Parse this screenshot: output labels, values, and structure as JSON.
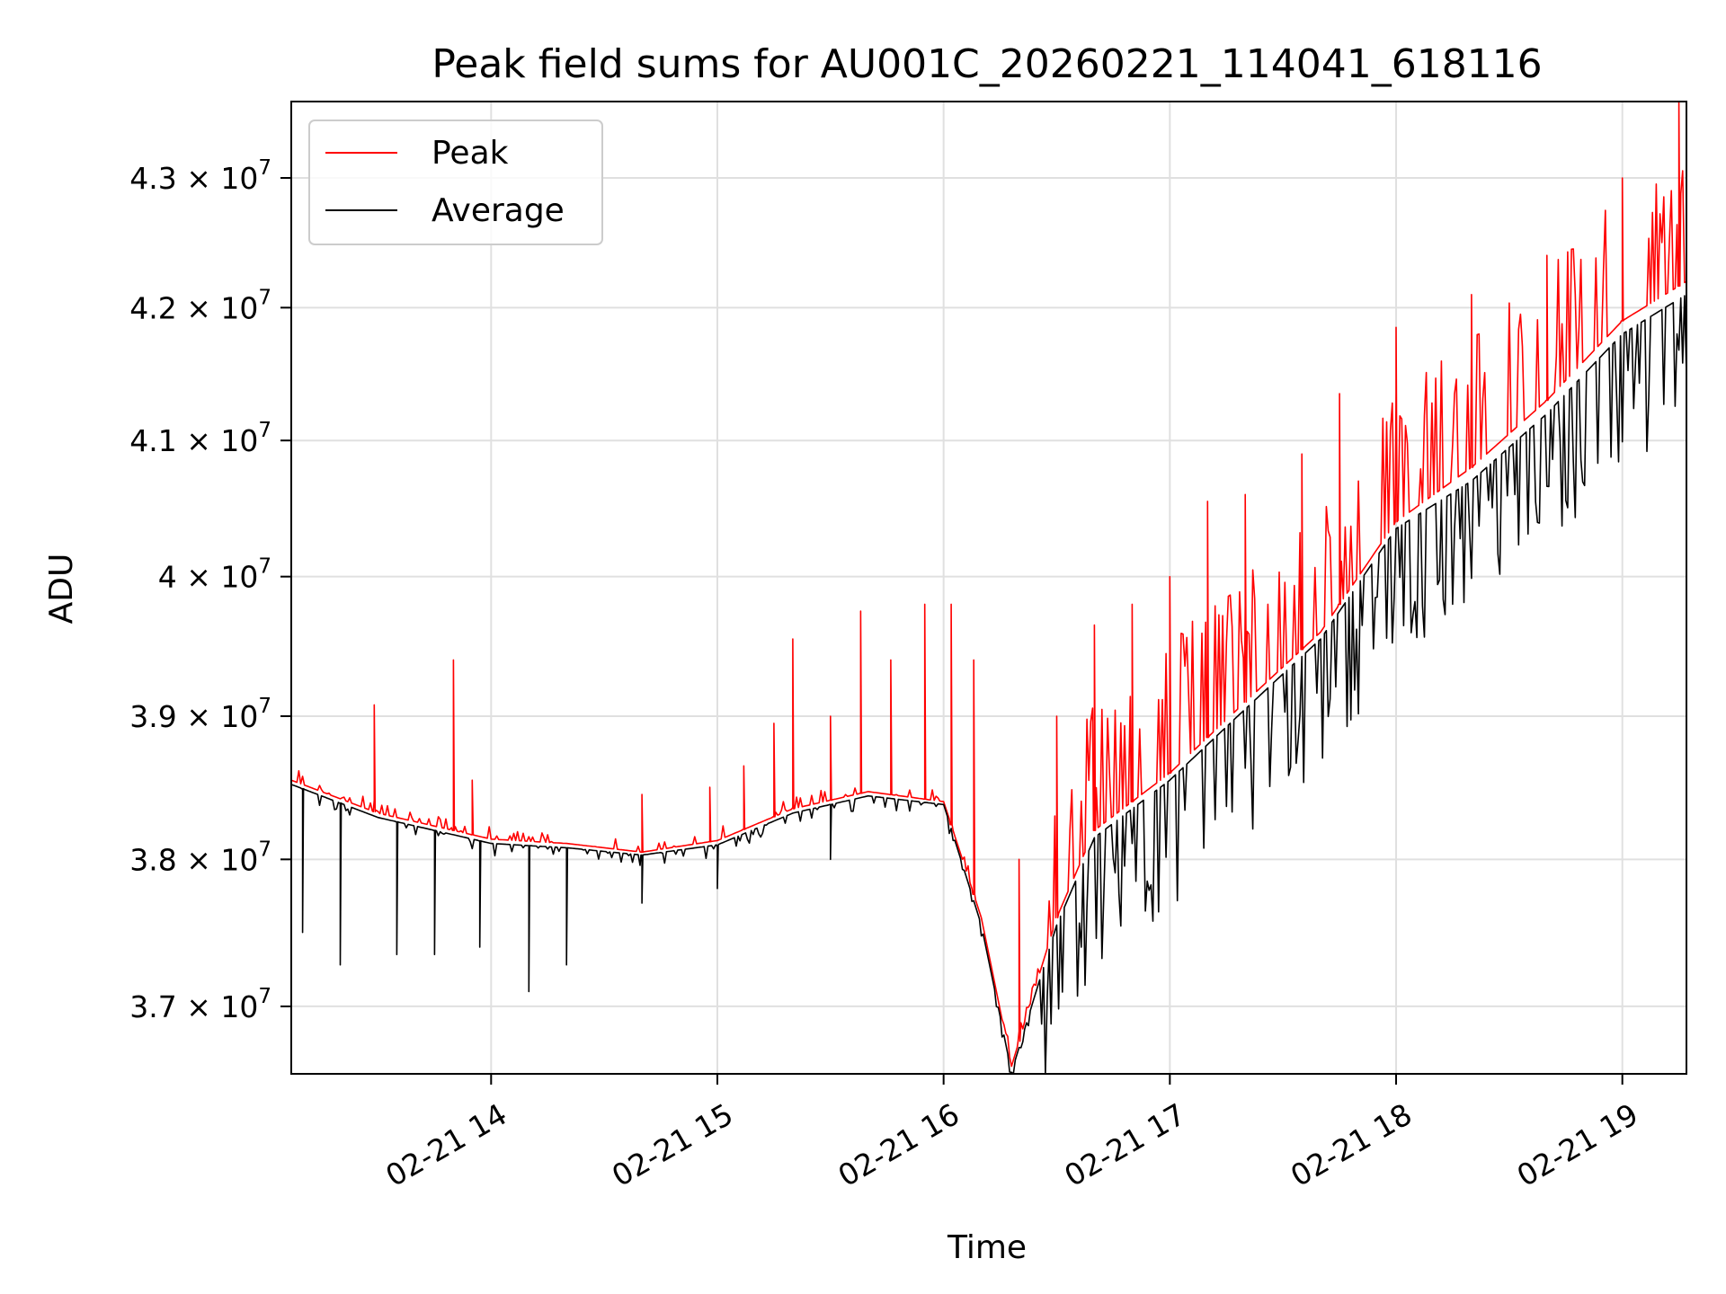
{
  "chart_data": {
    "type": "line",
    "title": "Peak field sums for AU001C_20260221_114041_618116",
    "xlabel": "Time",
    "ylabel": "ADU",
    "scale_y": "log",
    "grid": true,
    "legend_position": "top-left",
    "xlim": [
      "2026-02-21 13:07",
      "2026-02-21 19:17"
    ],
    "ylim": [
      36550000,
      43600000
    ],
    "x_ticks": [
      {
        "value": "2026-02-21 14:00",
        "label": "02-21 14"
      },
      {
        "value": "2026-02-21 15:00",
        "label": "02-21 15"
      },
      {
        "value": "2026-02-21 16:00",
        "label": "02-21 16"
      },
      {
        "value": "2026-02-21 17:00",
        "label": "02-21 17"
      },
      {
        "value": "2026-02-21 18:00",
        "label": "02-21 18"
      },
      {
        "value": "2026-02-21 19:00",
        "label": "02-21 19"
      }
    ],
    "y_ticks": [
      {
        "value": 37000000,
        "mantissa": "3.7",
        "exponent": "7"
      },
      {
        "value": 38000000,
        "mantissa": "3.8",
        "exponent": "7"
      },
      {
        "value": 39000000,
        "mantissa": "3.9",
        "exponent": "7"
      },
      {
        "value": 40000000,
        "mantissa": "4",
        "exponent": "7"
      },
      {
        "value": 41000000,
        "mantissa": "4.1",
        "exponent": "7"
      },
      {
        "value": 42000000,
        "mantissa": "4.2",
        "exponent": "7"
      },
      {
        "value": 43000000,
        "mantissa": "4.3",
        "exponent": "7"
      }
    ],
    "series": [
      {
        "name": "Peak",
        "color": "#ff0000",
        "baseline": [
          [
            "2026-02-21 13:07",
            38550000
          ],
          [
            "2026-02-21 13:30",
            38320000
          ],
          [
            "2026-02-21 14:00",
            38140000
          ],
          [
            "2026-02-21 14:20",
            38110000
          ],
          [
            "2026-02-21 14:40",
            38050000
          ],
          [
            "2026-02-21 15:00",
            38130000
          ],
          [
            "2026-02-21 15:20",
            38350000
          ],
          [
            "2026-02-21 15:40",
            38470000
          ],
          [
            "2026-02-21 16:00",
            38400000
          ],
          [
            "2026-02-21 16:10",
            37600000
          ],
          [
            "2026-02-21 16:18",
            36600000
          ],
          [
            "2026-02-21 16:30",
            37600000
          ],
          [
            "2026-02-21 16:40",
            38200000
          ],
          [
            "2026-02-21 17:00",
            38600000
          ],
          [
            "2026-02-21 17:20",
            39100000
          ],
          [
            "2026-02-21 17:40",
            39600000
          ],
          [
            "2026-02-21 18:00",
            40400000
          ],
          [
            "2026-02-21 18:20",
            40800000
          ],
          [
            "2026-02-21 18:40",
            41300000
          ],
          [
            "2026-02-21 19:00",
            41900000
          ],
          [
            "2026-02-21 19:17",
            42200000
          ]
        ],
        "spikes": [
          [
            "2026-02-21 13:29",
            39080000
          ],
          [
            "2026-02-21 13:50",
            39400000
          ],
          [
            "2026-02-21 13:55",
            38550000
          ],
          [
            "2026-02-21 14:40",
            38450000
          ],
          [
            "2026-02-21 14:58",
            38500000
          ],
          [
            "2026-02-21 15:07",
            38650000
          ],
          [
            "2026-02-21 15:15",
            38950000
          ],
          [
            "2026-02-21 15:20",
            39550000
          ],
          [
            "2026-02-21 15:30",
            39000000
          ],
          [
            "2026-02-21 15:38",
            39750000
          ],
          [
            "2026-02-21 15:46",
            39400000
          ],
          [
            "2026-02-21 15:55",
            39800000
          ],
          [
            "2026-02-21 16:02",
            39800000
          ],
          [
            "2026-02-21 16:08",
            39400000
          ],
          [
            "2026-02-21 16:20",
            38000000
          ],
          [
            "2026-02-21 16:30",
            39000000
          ],
          [
            "2026-02-21 16:40",
            39650000
          ],
          [
            "2026-02-21 16:50",
            39800000
          ],
          [
            "2026-02-21 17:00",
            40000000
          ],
          [
            "2026-02-21 17:10",
            40550000
          ],
          [
            "2026-02-21 17:20",
            40600000
          ],
          [
            "2026-02-21 17:35",
            40900000
          ],
          [
            "2026-02-21 17:45",
            41350000
          ],
          [
            "2026-02-21 18:00",
            41850000
          ],
          [
            "2026-02-21 18:20",
            42100000
          ],
          [
            "2026-02-21 18:40",
            42400000
          ],
          [
            "2026-02-21 19:00",
            43000000
          ],
          [
            "2026-02-21 19:15",
            43600000
          ]
        ]
      },
      {
        "name": "Average",
        "color": "#000000",
        "baseline": [
          [
            "2026-02-21 13:07",
            38520000
          ],
          [
            "2026-02-21 13:30",
            38290000
          ],
          [
            "2026-02-21 14:00",
            38110000
          ],
          [
            "2026-02-21 14:20",
            38080000
          ],
          [
            "2026-02-21 14:40",
            38030000
          ],
          [
            "2026-02-21 15:00",
            38100000
          ],
          [
            "2026-02-21 15:20",
            38320000
          ],
          [
            "2026-02-21 15:40",
            38440000
          ],
          [
            "2026-02-21 16:00",
            38380000
          ],
          [
            "2026-02-21 16:10",
            37550000
          ],
          [
            "2026-02-21 16:18",
            36560000
          ],
          [
            "2026-02-21 16:30",
            37550000
          ],
          [
            "2026-02-21 16:40",
            38150000
          ],
          [
            "2026-02-21 17:00",
            38550000
          ],
          [
            "2026-02-21 17:20",
            39050000
          ],
          [
            "2026-02-21 17:40",
            39550000
          ],
          [
            "2026-02-21 18:00",
            40350000
          ],
          [
            "2026-02-21 18:20",
            40700000
          ],
          [
            "2026-02-21 18:40",
            41200000
          ],
          [
            "2026-02-21 19:00",
            41800000
          ],
          [
            "2026-02-21 19:17",
            42100000
          ]
        ],
        "dips": [
          [
            "2026-02-21 13:10",
            37500000
          ],
          [
            "2026-02-21 13:20",
            37280000
          ],
          [
            "2026-02-21 13:35",
            37350000
          ],
          [
            "2026-02-21 13:45",
            37350000
          ],
          [
            "2026-02-21 13:57",
            37400000
          ],
          [
            "2026-02-21 14:10",
            37100000
          ],
          [
            "2026-02-21 14:20",
            37280000
          ],
          [
            "2026-02-21 14:40",
            37700000
          ],
          [
            "2026-02-21 15:00",
            37800000
          ],
          [
            "2026-02-21 15:30",
            38000000
          ]
        ]
      }
    ]
  }
}
